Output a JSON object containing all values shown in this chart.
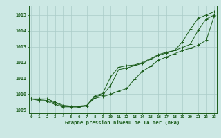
{
  "hours": [
    0,
    1,
    2,
    3,
    4,
    5,
    6,
    7,
    8,
    9,
    10,
    11,
    12,
    13,
    14,
    15,
    16,
    17,
    18,
    19,
    20,
    21,
    22,
    23
  ],
  "line1": [
    1009.7,
    1009.7,
    1009.7,
    1009.5,
    1009.3,
    1009.25,
    1009.25,
    1009.3,
    1009.9,
    1010.05,
    1011.1,
    1011.7,
    1011.8,
    1011.85,
    1012.0,
    1012.25,
    1012.5,
    1012.65,
    1012.75,
    1013.3,
    1014.1,
    1014.8,
    1015.0,
    1015.2
  ],
  "line2": [
    1009.7,
    1009.65,
    1009.6,
    1009.45,
    1009.25,
    1009.2,
    1009.2,
    1009.25,
    1009.85,
    1009.95,
    1010.55,
    1011.55,
    1011.65,
    1011.8,
    1011.95,
    1012.2,
    1012.45,
    1012.6,
    1012.75,
    1012.95,
    1013.15,
    1014.05,
    1014.75,
    1015.0
  ],
  "line3": [
    1009.7,
    1009.6,
    1009.55,
    1009.35,
    1009.2,
    1009.2,
    1009.2,
    1009.3,
    1009.75,
    1009.85,
    1010.0,
    1010.2,
    1010.35,
    1010.95,
    1011.45,
    1011.75,
    1012.15,
    1012.35,
    1012.55,
    1012.75,
    1012.9,
    1013.1,
    1013.4,
    1014.95
  ],
  "line_color": "#1a5c1a",
  "bg_color": "#cce8e4",
  "grid_color": "#aaccc8",
  "xlabel": "Graphe pression niveau de la mer (hPa)",
  "ylim": [
    1008.8,
    1015.6
  ],
  "yticks": [
    1009,
    1010,
    1011,
    1012,
    1013,
    1014,
    1015
  ],
  "xticks": [
    0,
    1,
    2,
    3,
    4,
    5,
    6,
    7,
    8,
    9,
    10,
    11,
    12,
    13,
    14,
    15,
    16,
    17,
    18,
    19,
    20,
    21,
    22,
    23
  ],
  "xlim": [
    -0.3,
    23.3
  ]
}
